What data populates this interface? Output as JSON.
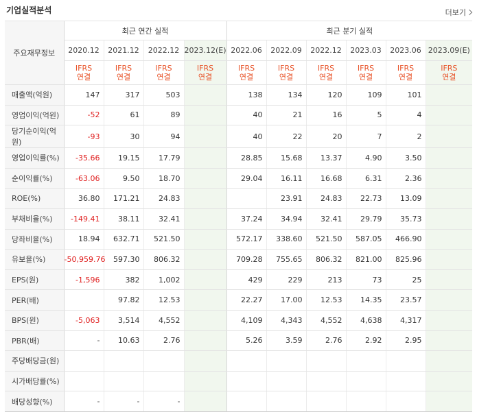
{
  "header": {
    "title": "기업실적분석",
    "more": "더보기"
  },
  "table": {
    "row_header_label": "주요재무정보",
    "annual_group": "최근 연간 실적",
    "quarter_group": "최근 분기 실적",
    "annual_dates": [
      "2020.12",
      "2021.12",
      "2022.12",
      "2023.12(E)"
    ],
    "quarter_dates": [
      "2022.06",
      "2022.09",
      "2022.12",
      "2023.03",
      "2023.06",
      "2023.09(E)"
    ],
    "ifrs_line1": "IFRS",
    "ifrs_line2": "연결",
    "rows": [
      {
        "label": "매출액(억원)",
        "annual": [
          "147",
          "317",
          "503",
          ""
        ],
        "quarter": [
          "138",
          "134",
          "120",
          "109",
          "101",
          ""
        ]
      },
      {
        "label": "영업이익(억원)",
        "annual": [
          "-52",
          "61",
          "89",
          ""
        ],
        "quarter": [
          "40",
          "21",
          "16",
          "5",
          "4",
          ""
        ]
      },
      {
        "label": "당기순이익(억원)",
        "annual": [
          "-93",
          "30",
          "94",
          ""
        ],
        "quarter": [
          "40",
          "22",
          "20",
          "7",
          "2",
          ""
        ]
      },
      {
        "label": "영업이익률(%)",
        "annual": [
          "-35.66",
          "19.15",
          "17.79",
          ""
        ],
        "quarter": [
          "28.85",
          "15.68",
          "13.37",
          "4.90",
          "3.50",
          ""
        ]
      },
      {
        "label": "순이익률(%)",
        "annual": [
          "-63.06",
          "9.50",
          "18.70",
          ""
        ],
        "quarter": [
          "29.04",
          "16.11",
          "16.68",
          "6.31",
          "2.36",
          ""
        ]
      },
      {
        "label": "ROE(%)",
        "annual": [
          "36.80",
          "171.21",
          "24.83",
          ""
        ],
        "quarter": [
          "",
          "23.91",
          "24.83",
          "22.73",
          "13.09",
          ""
        ]
      },
      {
        "label": "부채비율(%)",
        "annual": [
          "-149.41",
          "38.11",
          "32.41",
          ""
        ],
        "quarter": [
          "37.24",
          "34.94",
          "32.41",
          "29.79",
          "35.73",
          ""
        ]
      },
      {
        "label": "당좌비율(%)",
        "annual": [
          "18.94",
          "632.71",
          "521.50",
          ""
        ],
        "quarter": [
          "572.17",
          "338.60",
          "521.50",
          "587.05",
          "466.90",
          ""
        ]
      },
      {
        "label": "유보율(%)",
        "annual": [
          "-50,959.76",
          "597.30",
          "806.32",
          ""
        ],
        "quarter": [
          "709.28",
          "755.65",
          "806.32",
          "821.00",
          "825.96",
          ""
        ]
      },
      {
        "label": "EPS(원)",
        "annual": [
          "-1,596",
          "382",
          "1,002",
          ""
        ],
        "quarter": [
          "429",
          "229",
          "213",
          "73",
          "25",
          ""
        ]
      },
      {
        "label": "PER(배)",
        "annual": [
          "",
          "97.82",
          "12.53",
          ""
        ],
        "quarter": [
          "22.27",
          "17.00",
          "12.53",
          "14.35",
          "23.57",
          ""
        ]
      },
      {
        "label": "BPS(원)",
        "annual": [
          "-5,063",
          "3,514",
          "4,552",
          ""
        ],
        "quarter": [
          "4,109",
          "4,343",
          "4,552",
          "4,638",
          "4,317",
          ""
        ]
      },
      {
        "label": "PBR(배)",
        "annual": [
          "-",
          "10.63",
          "2.76",
          ""
        ],
        "quarter": [
          "5.26",
          "3.59",
          "2.76",
          "2.92",
          "2.95",
          ""
        ]
      },
      {
        "label": "주당배당금(원)",
        "annual": [
          "",
          "",
          "",
          ""
        ],
        "quarter": [
          "",
          "",
          "",
          "",
          "",
          ""
        ]
      },
      {
        "label": "시가배당률(%)",
        "annual": [
          "",
          "",
          "",
          ""
        ],
        "quarter": [
          "",
          "",
          "",
          "",
          "",
          ""
        ]
      },
      {
        "label": "배당성향(%)",
        "annual": [
          "-",
          "-",
          "-",
          ""
        ],
        "quarter": [
          "",
          "",
          "",
          "",
          "",
          ""
        ]
      }
    ]
  },
  "colors": {
    "negative": "#e02020",
    "ifrs": "#e8542a",
    "estimate_bg": "#f1f7ee"
  }
}
